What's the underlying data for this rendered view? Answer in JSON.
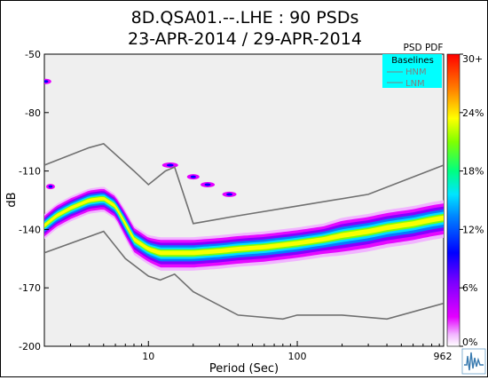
{
  "chart_data": {
    "type": "heatmap",
    "title_line1": "8D.QSA01.--.LHE : 90 PSDs",
    "title_line2": "23-APR-2014 / 29-APR-2014",
    "xlabel": "Period (Sec)",
    "ylabel": "dB",
    "x_scale": "log",
    "xlim": [
      2,
      962
    ],
    "ylim": [
      -200,
      -50
    ],
    "x_ticks": [
      {
        "value": 10,
        "label": "10"
      },
      {
        "value": 100,
        "label": "100"
      },
      {
        "value": 962,
        "label": "962"
      }
    ],
    "y_ticks": [
      {
        "value": -50,
        "label": "-50"
      },
      {
        "value": -80,
        "label": "-80"
      },
      {
        "value": -110,
        "label": "-110"
      },
      {
        "value": -140,
        "label": "-140"
      },
      {
        "value": -170,
        "label": "-170"
      },
      {
        "value": -200,
        "label": "-200"
      }
    ],
    "grid": false,
    "legend": {
      "title": "PSD PDF",
      "box_title": "Baselines",
      "entries": [
        "HNM",
        "LNM"
      ],
      "placement": "top-right"
    },
    "colorbar": {
      "labels": [
        "30+",
        "24%",
        "18%",
        "12%",
        "6%",
        "0%"
      ],
      "range": [
        0,
        30
      ],
      "colors": [
        "#ffffff",
        "#e400ff",
        "#8000ff",
        "#0000ff",
        "#0080ff",
        "#00e5ff",
        "#00ff80",
        "#80ff00",
        "#ffff00",
        "#ff8000",
        "#ff0000"
      ]
    },
    "hnm": {
      "name": "HNM",
      "points": [
        [
          2,
          -107
        ],
        [
          4,
          -98
        ],
        [
          5,
          -96
        ],
        [
          8,
          -110
        ],
        [
          10,
          -117
        ],
        [
          13,
          -110
        ],
        [
          15,
          -108
        ],
        [
          20,
          -137
        ],
        [
          40,
          -133
        ],
        [
          100,
          -128
        ],
        [
          300,
          -122
        ],
        [
          962,
          -107
        ]
      ]
    },
    "lnm": {
      "name": "LNM",
      "points": [
        [
          2,
          -152
        ],
        [
          5,
          -141
        ],
        [
          7,
          -155
        ],
        [
          10,
          -164
        ],
        [
          12,
          -166
        ],
        [
          15,
          -163
        ],
        [
          20,
          -172
        ],
        [
          40,
          -184
        ],
        [
          80,
          -186
        ],
        [
          100,
          -184
        ],
        [
          200,
          -184
        ],
        [
          400,
          -186
        ],
        [
          962,
          -178
        ]
      ]
    },
    "pdf_band": [
      [
        2.0,
        -138,
        6
      ],
      [
        2.4,
        -133,
        6
      ],
      [
        3.0,
        -129,
        6
      ],
      [
        4.0,
        -125,
        6
      ],
      [
        5.0,
        -124,
        6
      ],
      [
        6.0,
        -128,
        6
      ],
      [
        7.0,
        -137,
        7
      ],
      [
        8.0,
        -145,
        7
      ],
      [
        10.0,
        -150,
        7
      ],
      [
        12.0,
        -152,
        8
      ],
      [
        15.0,
        -152,
        8
      ],
      [
        20.0,
        -152,
        8
      ],
      [
        30.0,
        -151,
        8
      ],
      [
        40.0,
        -150,
        8
      ],
      [
        60.0,
        -149,
        8
      ],
      [
        100.0,
        -147,
        8
      ],
      [
        150.0,
        -145,
        8
      ],
      [
        200.0,
        -143,
        9
      ],
      [
        300.0,
        -141,
        9
      ],
      [
        400.0,
        -139,
        9
      ],
      [
        600.0,
        -137,
        9
      ],
      [
        800.0,
        -135,
        9
      ],
      [
        962.0,
        -134,
        9
      ]
    ],
    "pdf_outliers": [
      [
        2.05,
        -64,
        3
      ],
      [
        2.2,
        -118,
        2
      ],
      [
        14,
        -107,
        6
      ],
      [
        20,
        -113,
        4
      ],
      [
        25,
        -117,
        5
      ],
      [
        35,
        -122,
        5
      ]
    ],
    "logo": "wave-logo-icon"
  }
}
